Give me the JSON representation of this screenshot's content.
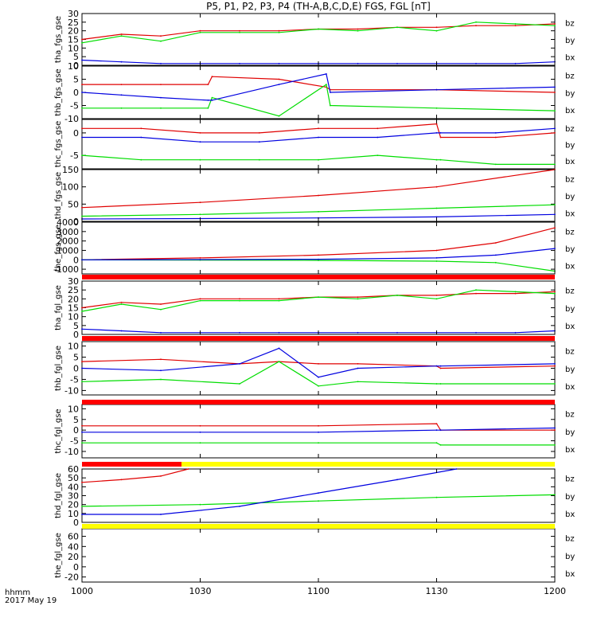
{
  "title": "P5, P1, P2, P3, P4 (TH-A,B,C,D,E) FGS, FGL [nT]",
  "footer": {
    "time_label": "hhmm",
    "date_label": "2017 May 19"
  },
  "colors": {
    "bz": "#e00000",
    "by": "#00dd00",
    "bx": "#0000e0",
    "flag_red": "#ff0000",
    "flag_yellow": "#ffff00",
    "flag_black": "#000000"
  },
  "chart_data": {
    "type": "line",
    "x_axis": {
      "range": [
        "1000",
        "1200"
      ],
      "tick_labels": [
        "1000",
        "1030",
        "1100",
        "1130",
        "1200"
      ]
    },
    "panels": [
      {
        "ylabel": "tha_fgs_gse",
        "ylim": [
          0,
          30
        ],
        "yticks": [
          "30",
          "25",
          "20",
          "15",
          "10",
          "5",
          "0"
        ],
        "legend": [
          "bz",
          "by",
          "bx"
        ],
        "series": [
          {
            "name": "bz",
            "x": [
              "1000",
              "1010",
              "1020",
              "1030",
              "1040",
              "1050",
              "1100",
              "1110",
              "1120",
              "1130",
              "1140",
              "1150",
              "1200"
            ],
            "values": [
              15,
              18,
              17,
              20,
              20,
              20,
              21,
              21,
              22,
              22,
              23,
              23,
              24
            ]
          },
          {
            "name": "by",
            "x": [
              "1000",
              "1010",
              "1020",
              "1030",
              "1040",
              "1050",
              "1100",
              "1110",
              "1120",
              "1130",
              "1140",
              "1150",
              "1200"
            ],
            "values": [
              13,
              17,
              14,
              19,
              19,
              19,
              21,
              20,
              22,
              20,
              25,
              24,
              23
            ]
          },
          {
            "name": "bx",
            "x": [
              "1000",
              "1010",
              "1020",
              "1030",
              "1040",
              "1050",
              "1100",
              "1110",
              "1120",
              "1130",
              "1140",
              "1150",
              "1200"
            ],
            "values": [
              3,
              2,
              1,
              1,
              1,
              1,
              1,
              1,
              1,
              1,
              1,
              1,
              2
            ]
          }
        ]
      },
      {
        "ylabel": "thb_fgs_gse",
        "ylim": [
          -10,
          10
        ],
        "yticks": [
          "10",
          "5",
          "0",
          "-5",
          "-10"
        ],
        "legend": [
          "bz",
          "by",
          "bx"
        ],
        "series": [
          {
            "name": "bz",
            "x": [
              "1000",
              "1010",
              "1020",
              "1032",
              "1033",
              "1050",
              "1102",
              "1103",
              "1130",
              "1200"
            ],
            "values": [
              3,
              3,
              3,
              3,
              6,
              5,
              2,
              1,
              1,
              0
            ]
          },
          {
            "name": "by",
            "x": [
              "1000",
              "1010",
              "1020",
              "1032",
              "1033",
              "1050",
              "1102",
              "1103",
              "1130",
              "1200"
            ],
            "values": [
              -6,
              -6,
              -6,
              -6,
              -2,
              -9,
              3,
              -5,
              -6,
              -7
            ]
          },
          {
            "name": "bx",
            "x": [
              "1000",
              "1010",
              "1020",
              "1032",
              "1033",
              "1050",
              "1102",
              "1103",
              "1130",
              "1200"
            ],
            "values": [
              0,
              -1,
              -2,
              -3,
              -3,
              3,
              7,
              0,
              1,
              2
            ]
          }
        ]
      },
      {
        "ylabel": "thc_fgs_gse",
        "ylim": [
          -8,
          3
        ],
        "yticks": [
          "0",
          "-5"
        ],
        "legend": [
          "bz",
          "by",
          "bx"
        ],
        "series": [
          {
            "name": "bz",
            "x": [
              "1000",
              "1015",
              "1030",
              "1045",
              "1100",
              "1115",
              "1130",
              "1131",
              "1145",
              "1200"
            ],
            "values": [
              1,
              1,
              0,
              0,
              1,
              1,
              2,
              -1,
              -1,
              0
            ]
          },
          {
            "name": "by",
            "x": [
              "1000",
              "1015",
              "1030",
              "1045",
              "1100",
              "1115",
              "1130",
              "1131",
              "1145",
              "1200"
            ],
            "values": [
              -5,
              -6,
              -6,
              -6,
              -6,
              -5,
              -6,
              -6,
              -7,
              -7
            ]
          },
          {
            "name": "bx",
            "x": [
              "1000",
              "1015",
              "1030",
              "1045",
              "1100",
              "1115",
              "1130",
              "1131",
              "1145",
              "1200"
            ],
            "values": [
              -1,
              -1,
              -2,
              -2,
              -1,
              -1,
              0,
              0,
              0,
              1
            ]
          }
        ]
      },
      {
        "ylabel": "thd_fgs_gse",
        "ylim": [
          0,
          150
        ],
        "yticks": [
          "150",
          "100",
          "50",
          "0"
        ],
        "legend": [
          "bz",
          "by",
          "bx"
        ],
        "series": [
          {
            "name": "bz",
            "x": [
              "1000",
              "1030",
              "1100",
              "1130",
              "1200"
            ],
            "values": [
              40,
              55,
              75,
              100,
              150
            ]
          },
          {
            "name": "by",
            "x": [
              "1000",
              "1030",
              "1100",
              "1130",
              "1200"
            ],
            "values": [
              15,
              20,
              28,
              38,
              48
            ]
          },
          {
            "name": "bx",
            "x": [
              "1000",
              "1030",
              "1100",
              "1130",
              "1200"
            ],
            "values": [
              7,
              8,
              10,
              13,
              20
            ]
          }
        ]
      },
      {
        "ylabel": "the_fgs_gse",
        "ylim": [
          -1500,
          4000
        ],
        "yticks": [
          "4000",
          "3000",
          "2000",
          "1000",
          "0",
          "-1000"
        ],
        "legend": [
          "bz",
          "by",
          "bx"
        ],
        "series": [
          {
            "name": "bz",
            "x": [
              "1000",
              "1030",
              "1100",
              "1130",
              "1145",
              "1200"
            ],
            "values": [
              0,
              200,
              500,
              1000,
              1800,
              3400
            ]
          },
          {
            "name": "by",
            "x": [
              "1000",
              "1030",
              "1100",
              "1130",
              "1145",
              "1200"
            ],
            "values": [
              0,
              -30,
              -60,
              -150,
              -300,
              -1200
            ]
          },
          {
            "name": "bx",
            "x": [
              "1000",
              "1030",
              "1100",
              "1130",
              "1145",
              "1200"
            ],
            "values": [
              0,
              20,
              60,
              200,
              500,
              1200
            ]
          }
        ]
      },
      {
        "ylabel": "tha_fgl_gse",
        "ylim": [
          0,
          30
        ],
        "yticks": [
          "30",
          "25",
          "20",
          "15",
          "10",
          "5",
          "0"
        ],
        "legend": [
          "bz",
          "by",
          "bx"
        ],
        "series": [
          {
            "name": "bz",
            "x": [
              "1000",
              "1010",
              "1020",
              "1030",
              "1040",
              "1050",
              "1100",
              "1110",
              "1120",
              "1130",
              "1140",
              "1150",
              "1200"
            ],
            "values": [
              15,
              18,
              17,
              20,
              20,
              20,
              21,
              21,
              22,
              22,
              23,
              23,
              24
            ]
          },
          {
            "name": "by",
            "x": [
              "1000",
              "1010",
              "1020",
              "1030",
              "1040",
              "1050",
              "1100",
              "1110",
              "1120",
              "1130",
              "1140",
              "1150",
              "1200"
            ],
            "values": [
              13,
              17,
              14,
              19,
              19,
              19,
              21,
              20,
              22,
              20,
              25,
              24,
              23
            ]
          },
          {
            "name": "bx",
            "x": [
              "1000",
              "1010",
              "1020",
              "1030",
              "1040",
              "1050",
              "1100",
              "1110",
              "1120",
              "1130",
              "1140",
              "1150",
              "1200"
            ],
            "values": [
              3,
              2,
              1,
              1,
              1,
              1,
              1,
              1,
              1,
              1,
              1,
              1,
              2
            ]
          }
        ]
      },
      {
        "ylabel": "thb_fgl_gse",
        "ylim": [
          -12,
          12
        ],
        "yticks": [
          "10",
          "5",
          "0",
          "-5",
          "-10"
        ],
        "legend": [
          "bz",
          "by",
          "bx"
        ],
        "series": [
          {
            "name": "bz",
            "x": [
              "1000",
              "1020",
              "1040",
              "1050",
              "1100",
              "1110",
              "1130",
              "1131",
              "1200"
            ],
            "values": [
              3,
              4,
              2,
              3,
              2,
              2,
              1,
              0,
              1
            ]
          },
          {
            "name": "by",
            "x": [
              "1000",
              "1020",
              "1040",
              "1050",
              "1100",
              "1110",
              "1130",
              "1131",
              "1200"
            ],
            "values": [
              -6,
              -5,
              -7,
              3,
              -8,
              -6,
              -7,
              -7,
              -7
            ]
          },
          {
            "name": "bx",
            "x": [
              "1000",
              "1020",
              "1040",
              "1050",
              "1100",
              "1110",
              "1130",
              "1131",
              "1200"
            ],
            "values": [
              0,
              -1,
              2,
              9,
              -4,
              0,
              1,
              1,
              2
            ]
          }
        ]
      },
      {
        "ylabel": "thc_fgl_gse",
        "ylim": [
          -13,
          12
        ],
        "yticks": [
          "10",
          "5",
          "0",
          "-5",
          "-10"
        ],
        "legend": [
          "bz",
          "by",
          "bx"
        ],
        "series": [
          {
            "name": "bz",
            "x": [
              "1000",
              "1030",
              "1100",
              "1130",
              "1131",
              "1200"
            ],
            "values": [
              2,
              2,
              2,
              3,
              0,
              0
            ]
          },
          {
            "name": "by",
            "x": [
              "1000",
              "1030",
              "1100",
              "1130",
              "1131",
              "1200"
            ],
            "values": [
              -6,
              -6,
              -6,
              -6,
              -7,
              -7
            ]
          },
          {
            "name": "bx",
            "x": [
              "1000",
              "1030",
              "1100",
              "1130",
              "1131",
              "1200"
            ],
            "values": [
              -1,
              -1,
              -1,
              0,
              0,
              1
            ]
          }
        ]
      },
      {
        "ylabel": "thd_fgl_gse",
        "ylim": [
          0,
          60
        ],
        "yticks": [
          "60",
          "50",
          "40",
          "30",
          "20",
          "10",
          "0"
        ],
        "legend": [
          "bz",
          "by",
          "bx"
        ],
        "series": [
          {
            "name": "bz",
            "x": [
              "1000",
              "1010",
              "1020",
              "1027"
            ],
            "values": [
              45,
              48,
              52,
              60
            ]
          },
          {
            "name": "by",
            "x": [
              "1000",
              "1030",
              "1100",
              "1130",
              "1200"
            ],
            "values": [
              18,
              20,
              24,
              28,
              31
            ]
          },
          {
            "name": "bx",
            "x": [
              "1000",
              "1020",
              "1040",
              "1100",
              "1120",
              "1135"
            ],
            "values": [
              9,
              9,
              18,
              33,
              48,
              60
            ]
          }
        ]
      },
      {
        "ylabel": "the_fgl_gse",
        "ylim": [
          -30,
          75
        ],
        "yticks": [
          "60",
          "40",
          "20",
          "0",
          "-20"
        ],
        "legend": [
          "bz",
          "by",
          "bx"
        ],
        "series": []
      }
    ]
  }
}
